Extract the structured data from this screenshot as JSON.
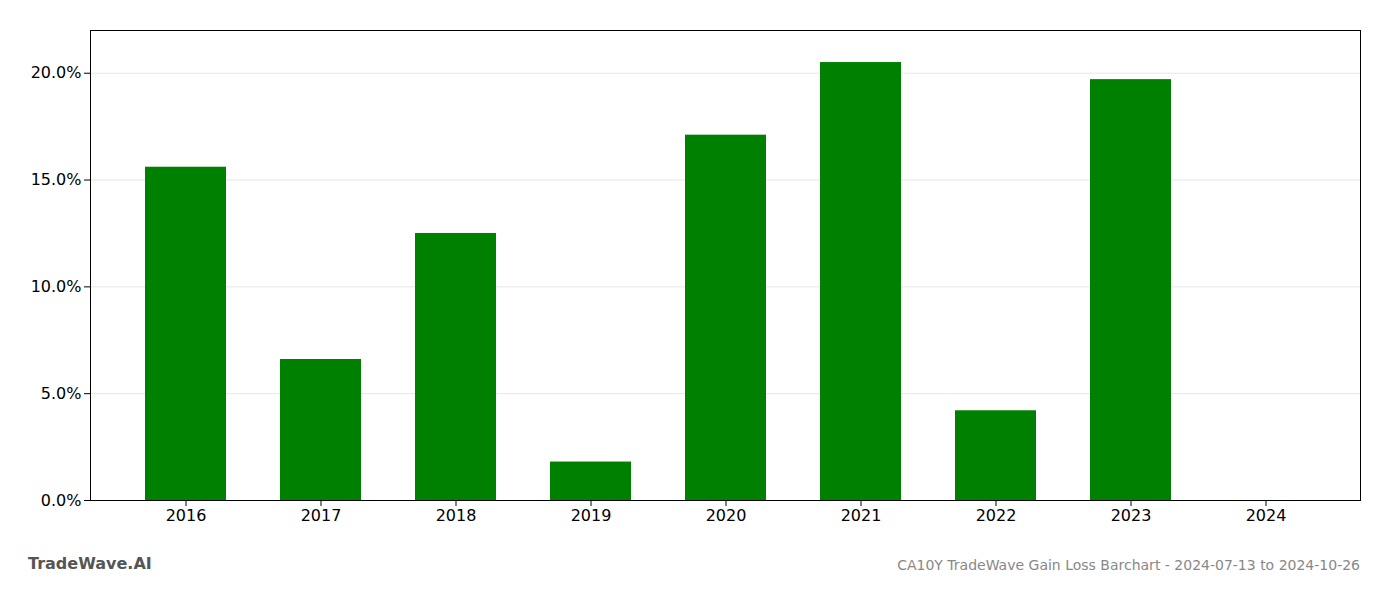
{
  "chart_data": {
    "type": "bar",
    "title": "CA10Y TradeWave Gain Loss Barchart - 2024-07-13 to 2024-10-26",
    "annotations": [
      "TradeWave.AI"
    ],
    "categories": [
      "2016",
      "2017",
      "2018",
      "2019",
      "2020",
      "2021",
      "2022",
      "2023",
      "2024"
    ],
    "values": [
      0.156,
      0.066,
      0.125,
      0.018,
      0.171,
      0.205,
      0.042,
      0.197,
      0.0
    ],
    "color": "#008000",
    "ylim": [
      0,
      0.22
    ],
    "yticks": [
      {
        "value": 0.0,
        "label": "0.0%"
      },
      {
        "value": 0.05,
        "label": "5.0%"
      },
      {
        "value": 0.1,
        "label": "10.0%"
      },
      {
        "value": 0.15,
        "label": "15.0%"
      },
      {
        "value": 0.2,
        "label": "20.0%"
      }
    ],
    "grid": true
  }
}
